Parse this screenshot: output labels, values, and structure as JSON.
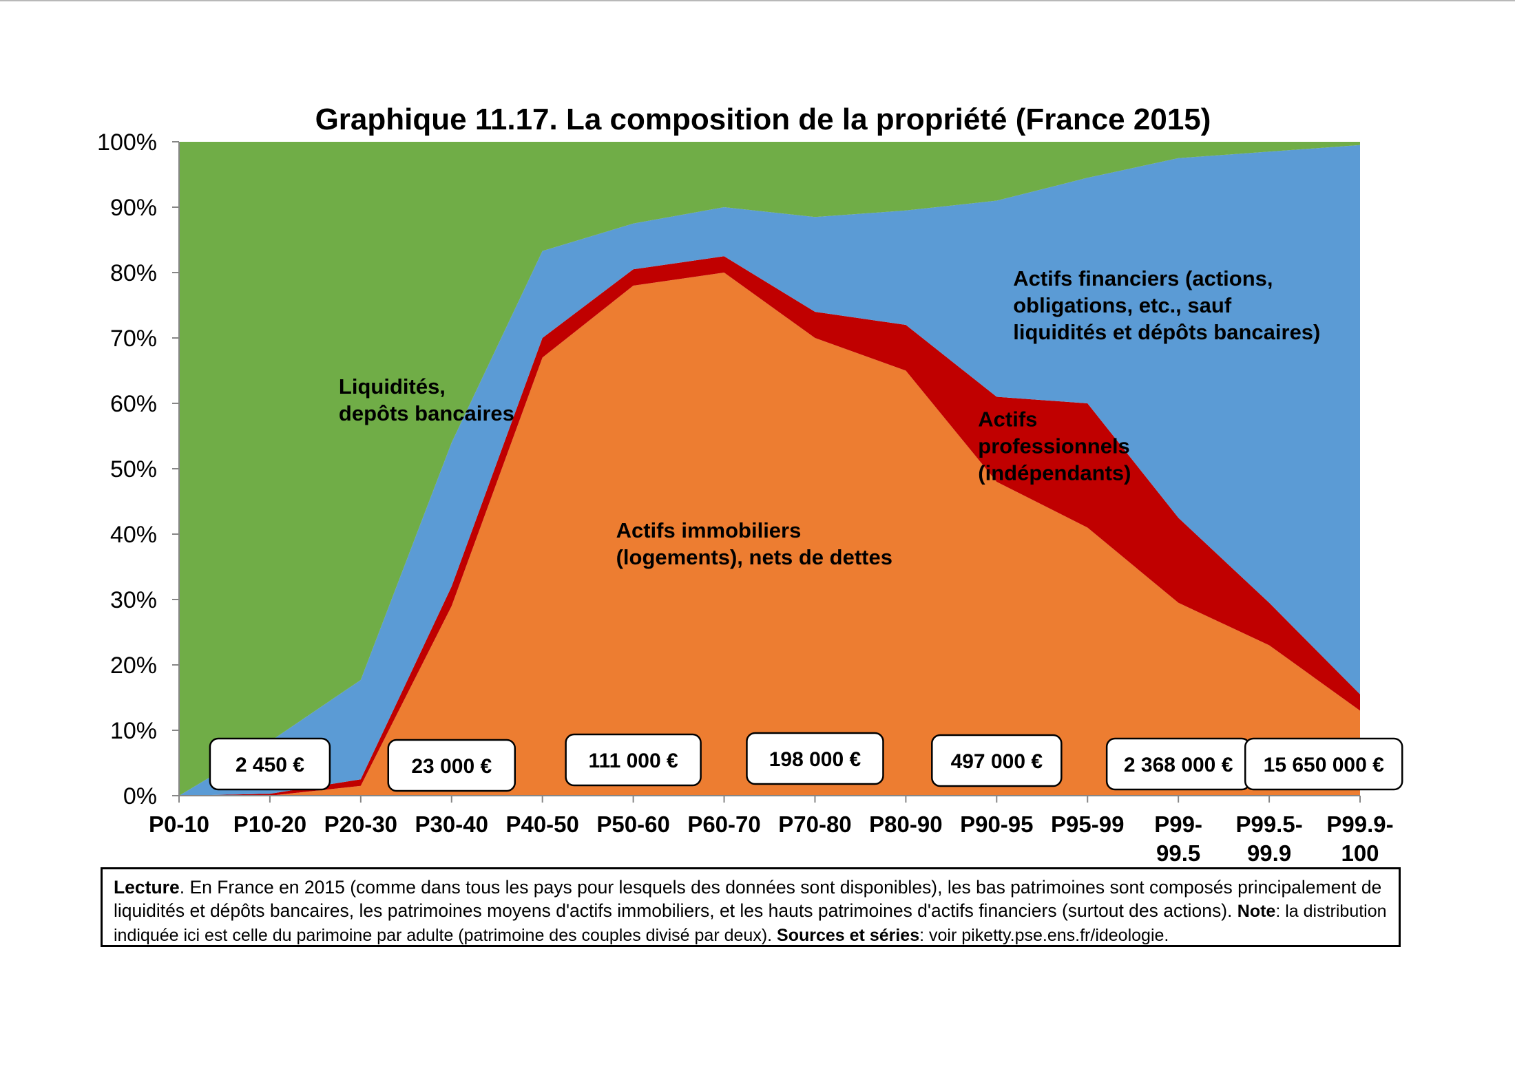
{
  "chart_data": {
    "type": "area",
    "stacked": true,
    "title": "Graphique 11.17. La composition de la propriété (France 2015)",
    "xlabel": "",
    "ylabel": "",
    "ylim": [
      0,
      100
    ],
    "y_unit": "%",
    "y_ticks": [
      "0%",
      "10%",
      "20%",
      "30%",
      "40%",
      "50%",
      "60%",
      "70%",
      "80%",
      "90%",
      "100%"
    ],
    "grid": false,
    "legend": "none (labels drawn inside the areas)",
    "categories": [
      "P0-10",
      "P10-20",
      "P20-30",
      "P30-40",
      "P40-50",
      "P50-60",
      "P60-70",
      "P70-80",
      "P80-90",
      "P90-95",
      "P95-99",
      "P99-99.5",
      "P99.5-99.9",
      "P99.9-100"
    ],
    "category_label_lines": [
      [
        "P0-10"
      ],
      [
        "P10-20"
      ],
      [
        "P20-30"
      ],
      [
        "P30-40"
      ],
      [
        "P40-50"
      ],
      [
        "P50-60"
      ],
      [
        "P60-70"
      ],
      [
        "P70-80"
      ],
      [
        "P80-90"
      ],
      [
        "P90-95"
      ],
      [
        "P95-99"
      ],
      [
        "P99-",
        "99.5"
      ],
      [
        "P99.5-",
        "99.9"
      ],
      [
        "P99.9-",
        "100"
      ]
    ],
    "series": [
      {
        "name": "Actifs immobiliers (logements), nets de dettes",
        "color": "#ED7D31",
        "values": [
          0,
          0,
          1.5,
          29,
          67,
          78,
          80,
          70,
          65,
          48,
          41,
          29.5,
          23,
          13
        ]
      },
      {
        "name": "Actifs professionnels (indépendants)",
        "color": "#C00000",
        "values": [
          0,
          0.3,
          1,
          3,
          3,
          2.5,
          2.5,
          4,
          7,
          13,
          19,
          13,
          6.5,
          2.5
        ]
      },
      {
        "name": "Actifs financiers (actions, obligations, etc., sauf liquidités et dépôts bancaires)",
        "color": "#5B9BD5",
        "values": [
          0,
          8,
          15.2,
          22,
          13.3,
          7,
          7.5,
          14.5,
          17.5,
          30,
          34.5,
          55,
          69,
          84
        ]
      },
      {
        "name": "Liquidités, depôts bancaires",
        "color": "#70AD47",
        "values": [
          100,
          91.7,
          82.3,
          46,
          16.7,
          12.5,
          10,
          11.5,
          10.5,
          9,
          5.5,
          2.5,
          1.5,
          0.5
        ]
      }
    ],
    "area_labels": [
      {
        "series": 3,
        "lines": [
          "Liquidités,",
          "depôts bancaires"
        ],
        "at": [
          "P10-20",
          61.5
        ]
      },
      {
        "series": 0,
        "lines": [
          "Actifs immobiliers",
          "(logements), nets de dettes"
        ],
        "at": [
          "P50-60",
          39.5
        ]
      },
      {
        "series": 1,
        "lines": [
          "Actifs",
          "professionnels",
          "(indépendants)"
        ],
        "at": [
          "P90-95",
          56.5
        ]
      },
      {
        "series": 2,
        "lines": [
          "Actifs financiers (actions,",
          "obligations, etc., sauf",
          "liquidités et dépôts bancaires)"
        ],
        "at": [
          "P95-99",
          78
        ]
      }
    ],
    "value_boxes": [
      {
        "text": "2 450 €",
        "at": 1
      },
      {
        "text": "23 000 €",
        "at": 3
      },
      {
        "text": "111 000 €",
        "at": 5
      },
      {
        "text": "198 000 €",
        "at": 7
      },
      {
        "text": "497 000 €",
        "at": 9
      },
      {
        "text": "2 368 000 €",
        "at": 11
      },
      {
        "text": "15 650 000 €",
        "at": 12.6
      }
    ]
  },
  "note": {
    "lecture_label": "Lecture",
    "lecture_text": ". En France en 2015 (comme dans tous les pays pour lesquels des données sont disponibles), les bas patrimoines sont composés principalement de liquidités et dépôts bancaires, les patrimoines moyens d'actifs immobiliers, et les hauts patrimoines d'actifs financiers (surtout des actions). ",
    "note_label": "Note",
    "note_text": ": la distribution indiquée ici est celle du parimoine par adulte (patrimoine des couples divisé par deux). ",
    "sources_label": "Sources et séries",
    "sources_text": ": voir piketty.pse.ens.fr/ideologie."
  }
}
